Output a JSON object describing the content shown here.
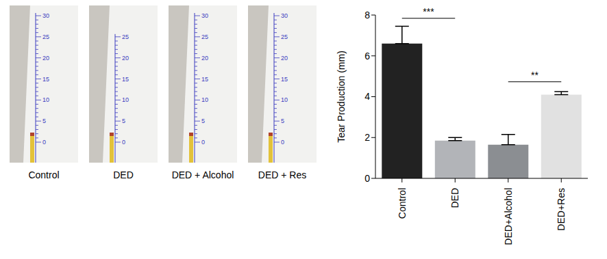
{
  "photos": [
    {
      "label": "Control",
      "ruler_labels": [
        0,
        5,
        10,
        15,
        20,
        25,
        30
      ]
    },
    {
      "label": "DED",
      "ruler_labels": [
        0,
        5,
        10,
        15,
        20,
        25
      ]
    },
    {
      "label": "DED + Alcohol",
      "ruler_labels": [
        0,
        5,
        10,
        15,
        20,
        25,
        30
      ]
    },
    {
      "label": "DED + Res",
      "ruler_labels": [
        0,
        5,
        10,
        15,
        20,
        25,
        30
      ]
    }
  ],
  "chart_data": {
    "type": "bar",
    "ylabel": "Tear Production (mm)",
    "categories": [
      "Control",
      "DED",
      "DED+Alcohol",
      "DED+Res"
    ],
    "values": [
      6.6,
      1.85,
      1.65,
      4.1
    ],
    "errors": [
      0.85,
      0.15,
      0.5,
      0.15
    ],
    "colors": [
      "#222222",
      "#b2b4b8",
      "#8b8e92",
      "#e1e1e1"
    ],
    "ylim": [
      0,
      8
    ],
    "yticks": [
      0,
      2,
      4,
      6,
      8
    ],
    "annotations": [
      {
        "text": "***",
        "from": "Control",
        "to": "DED"
      },
      {
        "text": "**",
        "from": "DED+Alcohol",
        "to": "DED+Res"
      }
    ]
  }
}
